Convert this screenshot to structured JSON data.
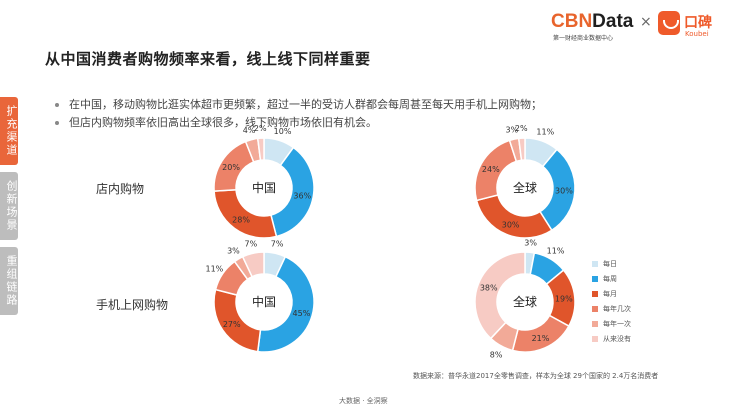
{
  "header": {
    "title": "从中国消费者购物频率来看，线上线下同样重要",
    "logo_cbn_main": "CBN",
    "logo_cbn_data": "Data",
    "logo_cbn_sub": "第一财经商业数据中心",
    "logo_x": "×",
    "logo_koubei": "口碑",
    "logo_koubei_sub": "Koubei"
  },
  "bullets": [
    "在中国，移动购物比逛实体超市更频繁，超过一半的受访人群都会每周甚至每天用手机上网购物；",
    "但店内购物频率依旧高出全球很多，线下购物市场依旧有机会。"
  ],
  "side_tabs": [
    {
      "label": "扩充渠道",
      "active": true
    },
    {
      "label": "创新场景",
      "active": false
    },
    {
      "label": "重组链路",
      "active": false
    }
  ],
  "rows": [
    "店内购物",
    "手机上网购物"
  ],
  "legend": [
    {
      "label": "每日",
      "color": "#cfe6f3"
    },
    {
      "label": "每周",
      "color": "#2aa3e3"
    },
    {
      "label": "每月",
      "color": "#e0552b"
    },
    {
      "label": "每年几次",
      "color": "#ec8268"
    },
    {
      "label": "每年一次",
      "color": "#f2aa98"
    },
    {
      "label": "从来没有",
      "color": "#f7cbc4"
    }
  ],
  "chart_data": [
    {
      "type": "pie",
      "donut": true,
      "center_label": "中国",
      "row": "店内购物",
      "labels": [
        "每日",
        "每周",
        "每月",
        "每年几次",
        "每年一次",
        "从来没有"
      ],
      "values": [
        10,
        36,
        28,
        20,
        4,
        2
      ],
      "value_labels": [
        "10%",
        "36%",
        "28%",
        "20%",
        "4%",
        "2%"
      ]
    },
    {
      "type": "pie",
      "donut": true,
      "center_label": "全球",
      "row": "店内购物",
      "labels": [
        "每日",
        "每周",
        "每月",
        "每年几次",
        "每年一次",
        "从来没有"
      ],
      "values": [
        11,
        30,
        30,
        24,
        3,
        2
      ],
      "value_labels": [
        "11%",
        "30%",
        "30%",
        "24%",
        "3%",
        "2%"
      ]
    },
    {
      "type": "pie",
      "donut": true,
      "center_label": "中国",
      "row": "手机上网购物",
      "labels": [
        "每日",
        "每周",
        "每月",
        "每年几次",
        "每年一次",
        "从来没有"
      ],
      "values": [
        7,
        45,
        27,
        11,
        3,
        7
      ],
      "value_labels": [
        "7%",
        "45%",
        "27%",
        "11%",
        "3%",
        "7%"
      ]
    },
    {
      "type": "pie",
      "donut": true,
      "center_label": "全球",
      "row": "手机上网购物",
      "labels": [
        "每日",
        "每周",
        "每月",
        "每年几次",
        "每年一次",
        "从来没有"
      ],
      "values": [
        3,
        11,
        19,
        21,
        8,
        38
      ],
      "value_labels": [
        "3%",
        "11%",
        "19%",
        "21%",
        "8%",
        "38%"
      ]
    }
  ],
  "source": "数据来源：普华永道2017全零售调查，样本为全球 29个国家的 2.4万名消费者",
  "footer": "大数据 · 全洞察"
}
